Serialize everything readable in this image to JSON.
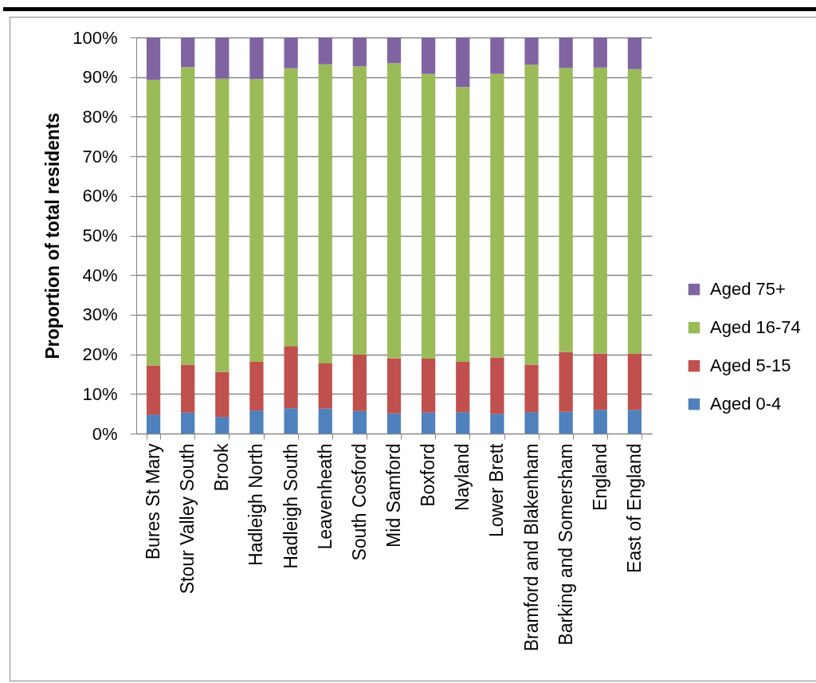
{
  "chart_data": {
    "type": "bar",
    "stacked": true,
    "ylabel": "Proportion of total residents",
    "categories": [
      "Bures St Mary",
      "Stour Valley South",
      "Brook",
      "Hadleigh North",
      "Hadleigh South",
      "Leavenheath",
      "South Cosford",
      "Mid Samford",
      "Boxford",
      "Nayland",
      "Lower Brett",
      "Bramford and Blakenham",
      "Barking and Somersham",
      "England",
      "East of England"
    ],
    "series": [
      {
        "name": "Aged 0-4",
        "color": "#4f81bd",
        "values": [
          4.8,
          5.3,
          4.2,
          5.8,
          6.4,
          6.3,
          5.7,
          5.1,
          5.3,
          5.4,
          5.0,
          5.4,
          5.5,
          6.0,
          6.0
        ]
      },
      {
        "name": "Aged 5-15",
        "color": "#c0504d",
        "values": [
          12.4,
          12.1,
          11.4,
          12.3,
          15.7,
          11.4,
          14.2,
          13.9,
          13.6,
          12.7,
          14.2,
          12.0,
          15.1,
          14.2,
          14.1
        ]
      },
      {
        "name": "Aged 16-74",
        "color": "#9bbb59",
        "values": [
          72.1,
          75.1,
          74.0,
          71.4,
          70.1,
          75.5,
          72.8,
          74.5,
          71.9,
          69.4,
          71.6,
          75.7,
          71.7,
          72.2,
          71.9
        ]
      },
      {
        "name": "Aged 75+",
        "color": "#8064a2",
        "values": [
          10.7,
          7.5,
          10.4,
          10.5,
          7.8,
          6.8,
          7.3,
          6.5,
          9.2,
          12.5,
          9.2,
          6.9,
          7.7,
          7.6,
          8.0
        ]
      }
    ],
    "ylim": [
      0,
      100
    ],
    "yticks": [
      {
        "value": 0,
        "label": "0%"
      },
      {
        "value": 10,
        "label": "10%"
      },
      {
        "value": 20,
        "label": "20%"
      },
      {
        "value": 30,
        "label": "30%"
      },
      {
        "value": 40,
        "label": "40%"
      },
      {
        "value": 50,
        "label": "50%"
      },
      {
        "value": 60,
        "label": "60%"
      },
      {
        "value": 70,
        "label": "70%"
      },
      {
        "value": 80,
        "label": "80%"
      },
      {
        "value": 90,
        "label": "90%"
      },
      {
        "value": 100,
        "label": "100%"
      }
    ],
    "grid": "y",
    "legend": "right"
  }
}
